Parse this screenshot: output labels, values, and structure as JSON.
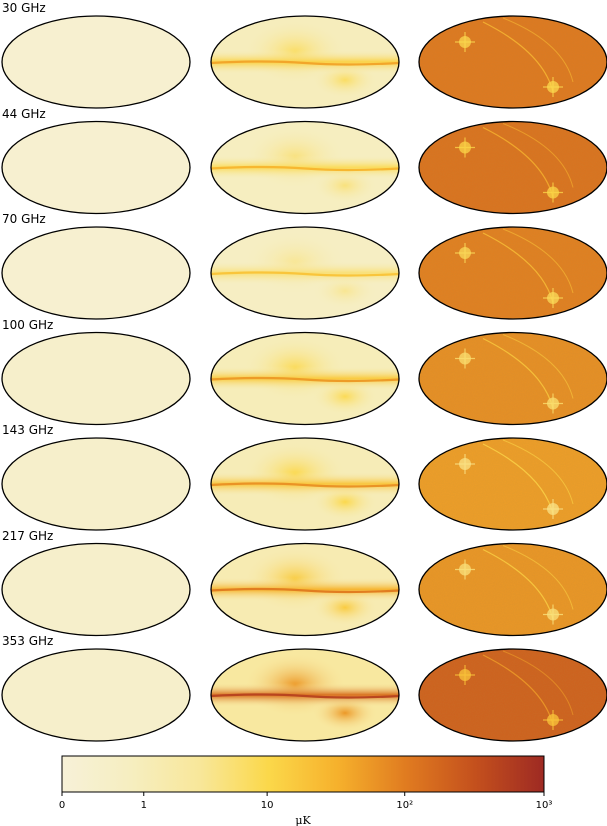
{
  "chart_data": {
    "type": "heatmap",
    "projection": "mollweide",
    "rows": [
      {
        "label": "30 GHz"
      },
      {
        "label": "44 GHz"
      },
      {
        "label": "70 GHz"
      },
      {
        "label": "100 GHz"
      },
      {
        "label": "143 GHz"
      },
      {
        "label": "217 GHz"
      },
      {
        "label": "353 GHz"
      }
    ],
    "columns": 3,
    "colorbar": {
      "scale": "log-like",
      "range": [
        0,
        1000
      ],
      "ticks": [
        {
          "value": 0,
          "label": "0"
        },
        {
          "value": 1,
          "label": "1"
        },
        {
          "value": 10,
          "label": "10"
        },
        {
          "value": 100,
          "label": "10²"
        },
        {
          "value": 1000,
          "label": "10³"
        }
      ],
      "unit": "μK",
      "colors": [
        "#f7f1d8",
        "#f6eec0",
        "#f8e79a",
        "#fbd84a",
        "#f6b12c",
        "#e07b20",
        "#c4501d",
        "#9e2a23"
      ]
    },
    "panel_levels": [
      [
        0.05,
        0.45,
        0.72
      ],
      [
        0.05,
        0.4,
        0.74
      ],
      [
        0.05,
        0.35,
        0.7
      ],
      [
        0.05,
        0.48,
        0.66
      ],
      [
        0.05,
        0.5,
        0.62
      ],
      [
        0.05,
        0.56,
        0.64
      ],
      [
        0.05,
        0.75,
        0.8
      ]
    ]
  }
}
